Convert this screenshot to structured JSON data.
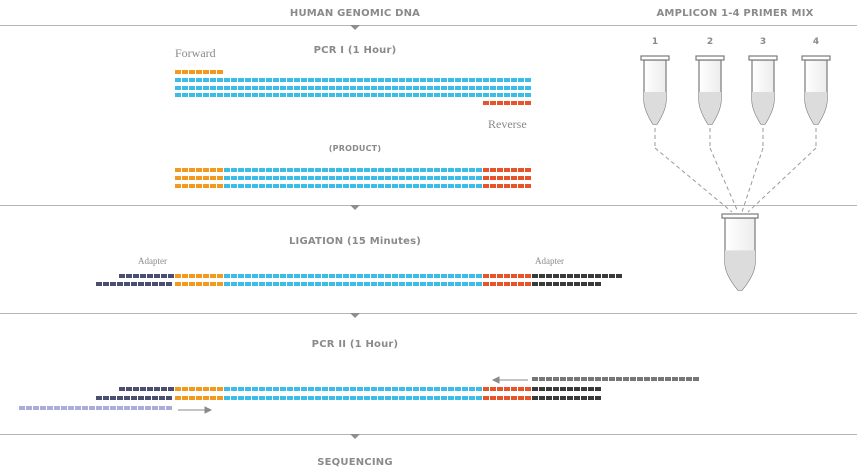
{
  "headers": {
    "genomic_dna": "HUMAN GENOMIC DNA",
    "primer_mix": "AMPLICON 1-4 PRIMER MIX",
    "pcr1": "PCR I (1 Hour)",
    "product": "(PRODUCT)",
    "ligation": "LIGATION (15 Minutes)",
    "pcr2": "PCR II (1 Hour)",
    "sequencing": "SEQUENCING"
  },
  "labels": {
    "forward": "Forward",
    "reverse": "Reverse",
    "adapter_left": "Adapter",
    "adapter_right": "Adapter"
  },
  "tubes": [
    "1",
    "2",
    "3",
    "4"
  ],
  "colors": {
    "dna": "#3cbde8",
    "forward_primer": "#f29a1e",
    "reverse_primer": "#e8542a",
    "adapter_dark": "#4a4e70",
    "adapter_black": "#3a3a3a",
    "pcr2_primer_grey": "#777777",
    "pcr2_primer_light": "#a9aed8",
    "text": "#8a8a8a",
    "divider": "#b5b5b5"
  }
}
